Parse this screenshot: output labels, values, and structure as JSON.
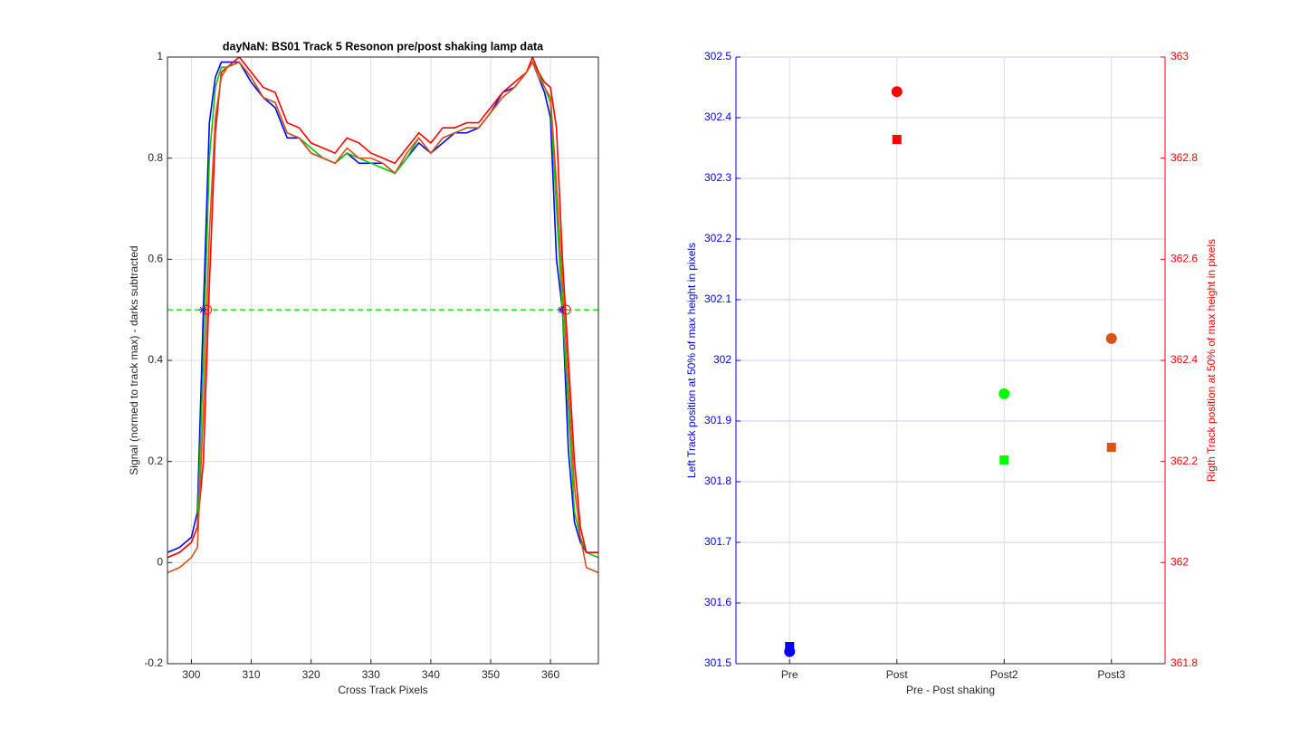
{
  "chart_data": [
    {
      "type": "line",
      "title": "dayNaN: BS01  Track 5 Resonon pre/post shaking lamp data",
      "xlabel": "Cross Track Pixels",
      "ylabel": "Signal (normed to track max) - darks subtracted",
      "xlim": [
        296,
        368
      ],
      "xticks": [
        300,
        310,
        320,
        330,
        340,
        350,
        360
      ],
      "ylim": [
        -0.2,
        1
      ],
      "yticks": [
        -0.2,
        0,
        0.2,
        0.4,
        0.6,
        0.8,
        1
      ],
      "grid": true,
      "x": [
        296,
        298,
        300,
        301,
        302,
        303,
        304,
        305,
        306,
        308,
        310,
        312,
        314,
        316,
        318,
        320,
        322,
        324,
        326,
        328,
        330,
        332,
        334,
        336,
        338,
        340,
        342,
        344,
        346,
        348,
        350,
        352,
        354,
        356,
        357,
        358,
        359,
        360,
        361,
        362,
        363,
        364,
        365,
        366,
        368
      ],
      "series": [
        {
          "color": "#0000ff",
          "values": [
            0.02,
            0.03,
            0.05,
            0.1,
            0.5,
            0.87,
            0.96,
            0.99,
            0.99,
            0.99,
            0.95,
            0.92,
            0.9,
            0.84,
            0.84,
            0.81,
            0.8,
            0.79,
            0.81,
            0.79,
            0.79,
            0.79,
            0.77,
            0.8,
            0.83,
            0.81,
            0.83,
            0.85,
            0.85,
            0.86,
            0.89,
            0.93,
            0.94,
            0.97,
            0.99,
            0.96,
            0.93,
            0.88,
            0.6,
            0.5,
            0.22,
            0.08,
            0.04,
            0.02,
            0.02
          ]
        },
        {
          "color": "#00cc00",
          "values": [
            0.01,
            0.02,
            0.04,
            0.07,
            0.4,
            0.8,
            0.94,
            0.98,
            0.98,
            0.99,
            0.96,
            0.92,
            0.91,
            0.85,
            0.84,
            0.82,
            0.8,
            0.79,
            0.81,
            0.8,
            0.79,
            0.78,
            0.77,
            0.8,
            0.84,
            0.81,
            0.84,
            0.85,
            0.86,
            0.86,
            0.89,
            0.92,
            0.94,
            0.97,
            0.99,
            0.97,
            0.94,
            0.91,
            0.7,
            0.5,
            0.3,
            0.1,
            0.05,
            0.02,
            0.01
          ]
        },
        {
          "color": "#ff0000",
          "values": [
            0.01,
            0.02,
            0.04,
            0.07,
            0.2,
            0.55,
            0.85,
            0.97,
            0.98,
            1.0,
            0.97,
            0.94,
            0.93,
            0.87,
            0.86,
            0.83,
            0.82,
            0.81,
            0.84,
            0.83,
            0.81,
            0.8,
            0.79,
            0.82,
            0.85,
            0.83,
            0.86,
            0.86,
            0.87,
            0.87,
            0.9,
            0.93,
            0.95,
            0.97,
            1.0,
            0.97,
            0.95,
            0.94,
            0.86,
            0.6,
            0.4,
            0.2,
            0.07,
            0.02,
            0.02
          ]
        },
        {
          "color": "#d95319",
          "values": [
            -0.02,
            -0.01,
            0.01,
            0.03,
            0.3,
            0.65,
            0.88,
            0.96,
            0.98,
            0.99,
            0.96,
            0.92,
            0.91,
            0.85,
            0.84,
            0.81,
            0.8,
            0.79,
            0.82,
            0.8,
            0.8,
            0.79,
            0.77,
            0.81,
            0.84,
            0.81,
            0.84,
            0.85,
            0.86,
            0.86,
            0.89,
            0.92,
            0.94,
            0.97,
            0.99,
            0.96,
            0.94,
            0.92,
            0.75,
            0.55,
            0.35,
            0.15,
            0.05,
            -0.01,
            -0.02
          ]
        }
      ],
      "hline": {
        "y": 0.5,
        "color": "#00ff00",
        "style": "dashed"
      },
      "markers": [
        {
          "x": 301.9,
          "y": 0.5,
          "shape": "star",
          "color": "#0000ff"
        },
        {
          "x": 302.6,
          "y": 0.5,
          "shape": "circle",
          "color": "#ff0000"
        },
        {
          "x": 361.8,
          "y": 0.5,
          "shape": "star",
          "color": "#0000ff"
        },
        {
          "x": 362.6,
          "y": 0.5,
          "shape": "circle",
          "color": "#ff0000"
        }
      ]
    },
    {
      "type": "scatter",
      "xlabel": "Pre - Post shaking",
      "ylabel": "Left Track position at 50% of  max height in pixels",
      "y2label": "Rigth Track position at 50% of max height in pixels",
      "categories": [
        "Pre",
        "Post",
        "Post2",
        "Post3"
      ],
      "ylim": [
        301.5,
        302.5
      ],
      "yticks": [
        301.5,
        301.6,
        301.7,
        301.8,
        301.9,
        302,
        302.1,
        302.2,
        302.3,
        302.4,
        302.5
      ],
      "y2lim": [
        361.8,
        363
      ],
      "y2ticks": [
        361.8,
        362,
        362.2,
        362.4,
        362.6,
        362.8,
        363
      ],
      "ycolor": "#0000ff",
      "y2color": "#ff0000",
      "grid": true,
      "series": [
        {
          "marker": "circle",
          "colors": [
            "#0000ff",
            "#ff0000",
            "#00ff00",
            "#d95319"
          ],
          "values": [
            301.52,
            302.443,
            301.945,
            302.036
          ]
        },
        {
          "marker": "square",
          "axis": "y2",
          "colors": [
            "#0000ff",
            "#ff0000",
            "#00ff00",
            "#d95319"
          ],
          "values": [
            361.834,
            362.837,
            362.203,
            362.228
          ]
        }
      ]
    }
  ]
}
